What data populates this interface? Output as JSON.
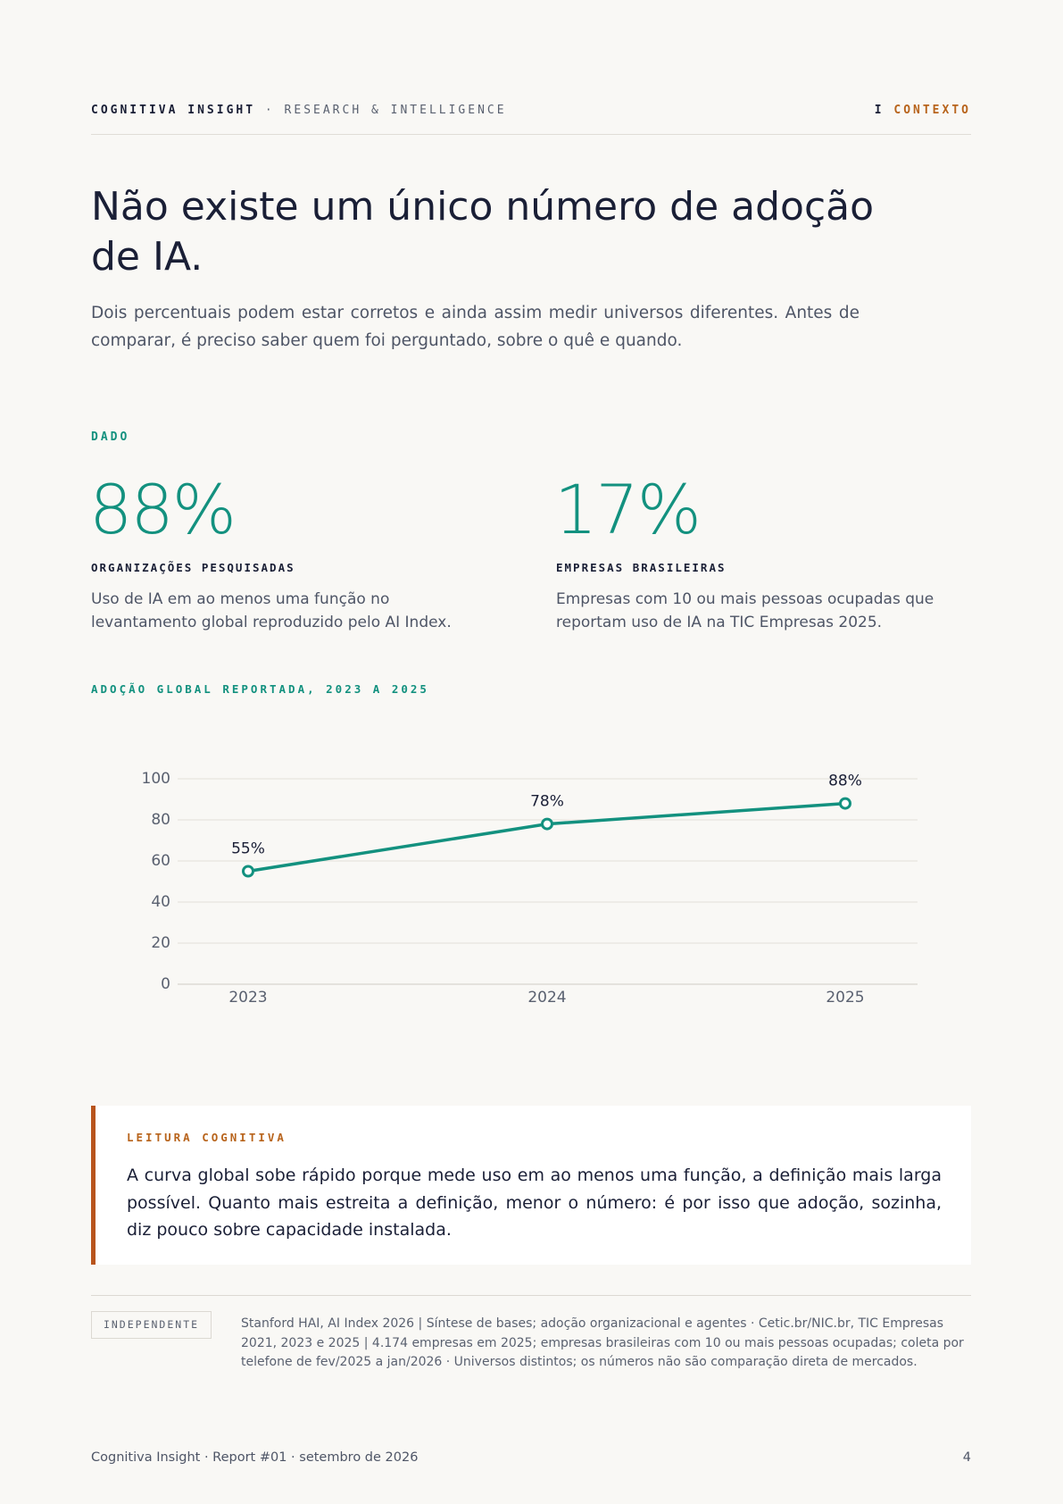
{
  "header": {
    "brand": "COGNITIVA INSIGHT",
    "tagline": "· RESEARCH & INTELLIGENCE",
    "section_number": "I",
    "section": "CONTEXTO"
  },
  "title": "Não existe um único número de adoção de IA.",
  "lead": "Dois percentuais podem estar corretos e ainda assim medir universos diferentes. Antes de comparar, é preciso saber quem foi perguntado, sobre o quê e quando.",
  "data_label": "DADO",
  "stats": [
    {
      "value": "88%",
      "label": "ORGANIZAÇÕES PESQUISADAS",
      "text": "Uso de IA em ao menos uma função no levantamento global reproduzido pelo AI Index."
    },
    {
      "value": "17%",
      "label": "EMPRESAS BRASILEIRAS",
      "text": "Empresas com 10 ou mais pessoas ocupadas que reportam uso de IA na TIC Empresas 2025."
    }
  ],
  "chart_data": {
    "type": "line",
    "title": "ADOÇÃO GLOBAL REPORTADA, 2023 A 2025",
    "categories": [
      "2023",
      "2024",
      "2025"
    ],
    "values": [
      55,
      78,
      88
    ],
    "value_labels": [
      "55%",
      "78%",
      "88%"
    ],
    "color": "#13917f",
    "ylim": [
      0,
      100
    ],
    "yticks": [
      0,
      20,
      40,
      60,
      80,
      100
    ],
    "grid": true
  },
  "callout": {
    "label": "LEITURA COGNITIVA",
    "text": "A curva global sobe rápido porque mede uso em ao menos uma função, a definição mais larga possível. Quanto mais estreita a definição, menor o número: é por isso que adoção, sozinha, diz pouco sobre capacidade instalada."
  },
  "source": {
    "badge": "INDEPENDENTE",
    "text": "Stanford HAI, AI Index 2026 | Síntese de bases; adoção organizacional e agentes · Cetic.br/NIC.br, TIC Empresas 2021, 2023 e 2025 | 4.174 empresas em 2025; empresas brasileiras com 10 ou mais pessoas ocupadas; coleta por telefone de fev/2025 a jan/2026 · Universos distintos; os números não são comparação direta de mercados."
  },
  "footer": {
    "left": "Cognitiva Insight · Report #01 · setembro de 2026",
    "page": "4"
  }
}
